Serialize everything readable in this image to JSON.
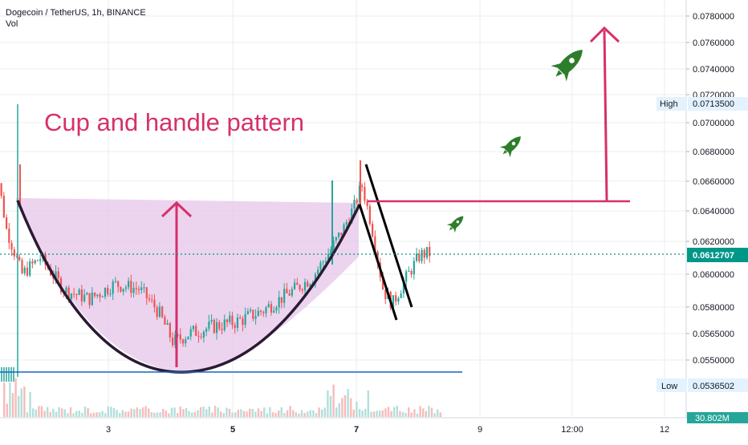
{
  "header": {
    "symbol_line": "Dogecoin / TetherUS, 1h, BINANCE",
    "vol_label": "Vol"
  },
  "annotation_title": "Cup and handle pattern",
  "colors": {
    "up_candle": "#26a69a",
    "down_candle": "#ef5350",
    "pattern_line": "#d6306a",
    "cup_fill": "#e6c6e9",
    "support_line": "#1565c0",
    "current_price_badge": "#009688",
    "rocket": "#2e7d2a",
    "grid": "#e9ecf1",
    "axis_text": "#131722"
  },
  "chart_data": {
    "type": "candlestick",
    "instrument": "Dogecoin / TetherUS",
    "interval": "1h",
    "exchange": "BINANCE",
    "x_ticks": [
      "3",
      "5",
      "7",
      "9",
      "12:00",
      "12"
    ],
    "x_ticks_bold": [
      "5",
      "7"
    ],
    "y_ticks": [
      "0.0780000",
      "0.0760000",
      "0.0740000",
      "0.0720000",
      "0.0700000",
      "0.0680000",
      "0.0660000",
      "0.0640000",
      "0.0620000",
      "0.0600000",
      "0.0580000",
      "0.0565000",
      "0.0550000"
    ],
    "price_labels": {
      "high": {
        "label": "High",
        "value": "0.0713500"
      },
      "current": {
        "value": "0.0612707"
      },
      "low": {
        "label": "Low",
        "value": "0.0536502"
      }
    },
    "volume_badge": "30.802M",
    "support_level": 0.05365,
    "resistance_level": 0.0643,
    "target_level": 0.0778,
    "ohlc_anchors": [
      {
        "day": 1.1,
        "close": 0.0541
      },
      {
        "day": 1.2,
        "close": 0.0666
      },
      {
        "day": 1.35,
        "close": 0.0628
      },
      {
        "day": 1.6,
        "close": 0.06
      },
      {
        "day": 1.9,
        "close": 0.061
      },
      {
        "day": 2.3,
        "close": 0.059
      },
      {
        "day": 2.7,
        "close": 0.0585
      },
      {
        "day": 3.1,
        "close": 0.0594
      },
      {
        "day": 3.5,
        "close": 0.0591
      },
      {
        "day": 3.8,
        "close": 0.0578
      },
      {
        "day": 4.05,
        "close": 0.056
      },
      {
        "day": 4.3,
        "close": 0.0565
      },
      {
        "day": 4.7,
        "close": 0.0569
      },
      {
        "day": 5.1,
        "close": 0.0572
      },
      {
        "day": 5.5,
        "close": 0.0578
      },
      {
        "day": 5.9,
        "close": 0.0588
      },
      {
        "day": 6.3,
        "close": 0.0598
      },
      {
        "day": 6.55,
        "close": 0.0612
      },
      {
        "day": 6.8,
        "close": 0.0628
      },
      {
        "day": 7.0,
        "close": 0.0645
      },
      {
        "day": 7.1,
        "close": 0.0658
      },
      {
        "day": 7.25,
        "close": 0.0632
      },
      {
        "day": 7.45,
        "close": 0.059
      },
      {
        "day": 7.6,
        "close": 0.0582
      },
      {
        "day": 7.75,
        "close": 0.0593
      },
      {
        "day": 7.9,
        "close": 0.0603
      },
      {
        "day": 8.05,
        "close": 0.0612
      },
      {
        "day": 8.2,
        "close": 0.06127
      }
    ]
  }
}
